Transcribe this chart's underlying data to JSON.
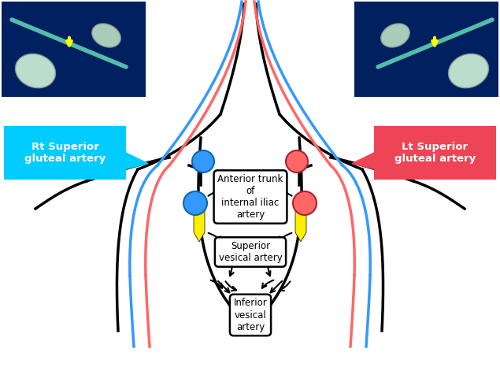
{
  "bg_color": "#ffffff",
  "photo_bg": "#002060",
  "blue_color": "#3399ff",
  "red_color": "#ff6666",
  "yellow_color": "#ffee00",
  "callout_left_text": "Rt Superior\ngluteal artery",
  "callout_left_bg": "#00ccff",
  "callout_right_text": "Lt Superior\ngluteal artery",
  "callout_right_bg": "#ee4455",
  "box_anterior_text": "Anterior trunk\nof\ninternal iliac\nartery",
  "box_superior_text": "Superior\nvesical artery",
  "box_inferior_text": "Inferior\nvesical\nartery"
}
